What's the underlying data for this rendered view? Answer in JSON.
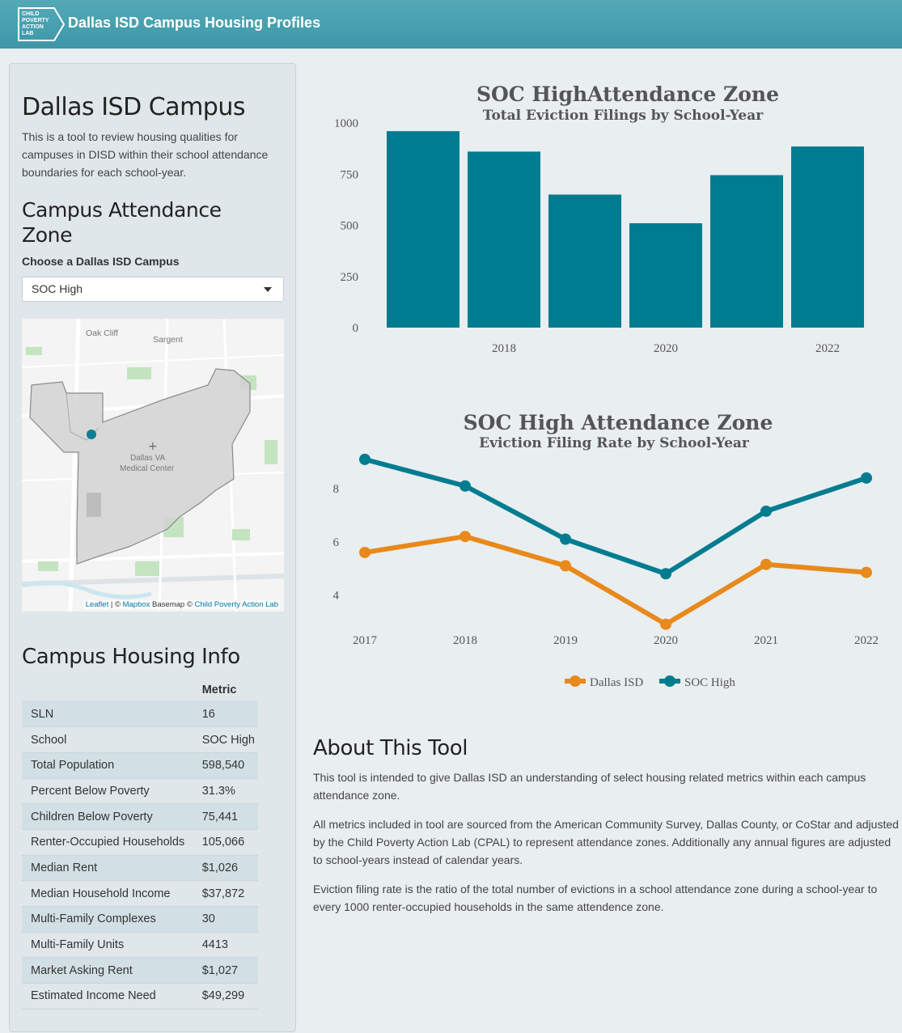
{
  "header": {
    "title": "Dallas ISD Campus Housing Profiles",
    "logo_text": "CHILD POVERTY ACTION LAB"
  },
  "sidebar": {
    "heading": "Dallas ISD Campus",
    "description": "This is a tool to review housing qualities for campuses in DISD within their school attendance boundaries for each school-year.",
    "zone_heading": "Campus Attendance Zone",
    "select_label": "Choose a Dallas ISD Campus",
    "select_value": "SOC High",
    "map": {
      "labels": {
        "oak_cliff": "Oak Cliff",
        "sargent": "Sargent",
        "va_line1": "Dallas VA",
        "va_line2": "Medical Center"
      },
      "attribution": {
        "leaflet": "Leaflet",
        "sep1": " | © ",
        "mapbox": "Mapbox",
        "basemap": " Basemap © ",
        "cpal": "Child Poverty Action Lab"
      }
    },
    "info_heading": "Campus Housing Info",
    "table": {
      "column_header": "Metric",
      "rows": [
        {
          "label": "SLN",
          "value": "16"
        },
        {
          "label": "School",
          "value": "SOC High"
        },
        {
          "label": "Total Population",
          "value": "598,540"
        },
        {
          "label": "Percent Below Poverty",
          "value": "31.3%"
        },
        {
          "label": "Children Below Poverty",
          "value": "75,441"
        },
        {
          "label": "Renter-Occupied Households",
          "value": "105,066"
        },
        {
          "label": "Median Rent",
          "value": "$1,026"
        },
        {
          "label": "Median Household Income",
          "value": "$37,872"
        },
        {
          "label": "Multi-Family Complexes",
          "value": "30"
        },
        {
          "label": "Multi-Family Units",
          "value": "4413"
        },
        {
          "label": "Market Asking Rent",
          "value": "$1,027"
        },
        {
          "label": "Estimated Income Need",
          "value": "$49,299"
        }
      ]
    }
  },
  "chart_data": [
    {
      "type": "bar",
      "title": "SOC  HighAttendance Zone",
      "subtitle": "Total Eviction Filings by School-Year",
      "x": [
        2017,
        2018,
        2019,
        2020,
        2021,
        2022
      ],
      "values": [
        960,
        860,
        650,
        510,
        745,
        885
      ],
      "ylim": [
        0,
        1000
      ],
      "yticks": [
        "0",
        "250",
        "500",
        "750",
        "1000"
      ],
      "xticks": [
        "2018",
        "2020",
        "2022"
      ],
      "color": "#007c91"
    },
    {
      "type": "line",
      "title": "SOC  High Attendance Zone",
      "subtitle": "Eviction Filing Rate by School-Year",
      "x": [
        2017,
        2018,
        2019,
        2020,
        2021,
        2022
      ],
      "xticks": [
        "2017",
        "2018",
        "2019",
        "2020",
        "2021",
        "2022"
      ],
      "yticks": [
        "4",
        "6",
        "8"
      ],
      "ylim": [
        2.8,
        9.4
      ],
      "series": [
        {
          "name": "Dallas ISD",
          "values": [
            5.6,
            6.2,
            5.1,
            2.9,
            5.15,
            4.85
          ],
          "color": "#e8891c"
        },
        {
          "name": "SOC  High",
          "values": [
            9.1,
            8.1,
            6.1,
            4.8,
            7.15,
            8.4
          ],
          "color": "#007c91"
        }
      ],
      "legend_position": "bottom"
    }
  ],
  "about": {
    "heading": "About This Tool",
    "p1": "This tool is intended to give Dallas ISD an understanding of select housing related metrics within each campus attendance zone.",
    "p2": "All metrics included in tool are sourced from the American Community Survey, Dallas County, or CoStar and adjusted by the Child Poverty Action Lab (CPAL) to represent attendance zones. Additionally any annual figures are adjusted to school-years instead of calendar years.",
    "p3": "Eviction filing rate is the ratio of the total number of evictions in a school attendance zone during a school-year to every 1000 renter-occupied households in the same attendence zone."
  }
}
